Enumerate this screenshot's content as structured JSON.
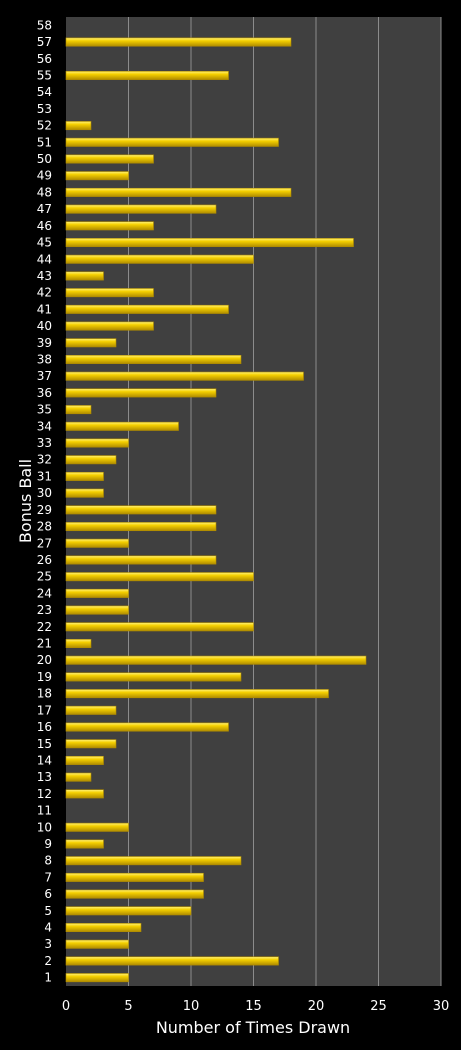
{
  "chart_data": {
    "type": "bar",
    "orientation": "horizontal",
    "xlabel": "Number of Times Drawn",
    "ylabel": "Bonus Ball",
    "xlim": [
      0,
      30
    ],
    "xticks": [
      "0",
      "5",
      "10",
      "15",
      "20",
      "25",
      "30"
    ],
    "grid": "vertical",
    "legend": "none",
    "colors": {
      "background": "#000000",
      "plot_area": "#404040",
      "bar": "#f5d000",
      "bar_highlight": "#fff27a",
      "bar_shadow": "#b08c00",
      "gridline": "#8c8c8c",
      "text": "#ffffff"
    },
    "categories": [
      "1",
      "2",
      "3",
      "4",
      "5",
      "6",
      "7",
      "8",
      "9",
      "10",
      "11",
      "12",
      "13",
      "14",
      "15",
      "16",
      "17",
      "18",
      "19",
      "20",
      "21",
      "22",
      "23",
      "24",
      "25",
      "26",
      "27",
      "28",
      "29",
      "30",
      "31",
      "32",
      "33",
      "34",
      "35",
      "36",
      "37",
      "38",
      "39",
      "40",
      "41",
      "42",
      "43",
      "44",
      "45",
      "46",
      "47",
      "48",
      "49",
      "50",
      "51",
      "52",
      "53",
      "54",
      "55",
      "56",
      "57",
      "58"
    ],
    "values": [
      5,
      17,
      5,
      6,
      10,
      11,
      11,
      14,
      3,
      5,
      0,
      3,
      2,
      3,
      4,
      13,
      4,
      21,
      14,
      24,
      2,
      15,
      5,
      5,
      15,
      12,
      5,
      12,
      12,
      3,
      3,
      4,
      5,
      9,
      2,
      12,
      19,
      14,
      4,
      7,
      13,
      7,
      3,
      15,
      23,
      7,
      12,
      18,
      5,
      7,
      17,
      2,
      0,
      0,
      13,
      0,
      18,
      0
    ]
  }
}
